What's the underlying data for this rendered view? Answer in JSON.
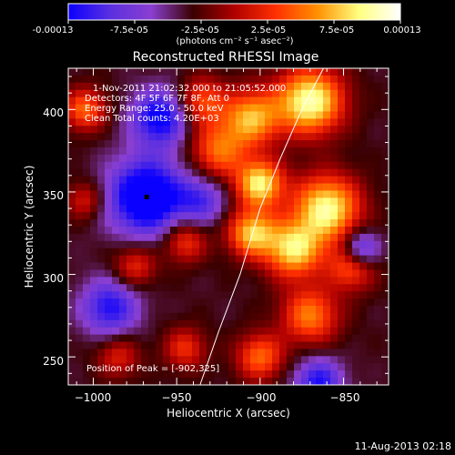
{
  "colorbar": {
    "tick_labels": [
      "-0.00013",
      "-7.5e-05",
      "-2.5e-05",
      "2.5e-05",
      "7.5e-05",
      "0.00013"
    ],
    "unit_label": "(photons cm⁻² s⁻¹ asec⁻²)",
    "range": [
      -0.00013,
      0.00013
    ],
    "colors": [
      "#0a00ff",
      "#5a2fe0",
      "#8a3fd0",
      "#3a0000",
      "#b00000",
      "#ff3000",
      "#ff9000",
      "#ffff80",
      "#ffffff"
    ]
  },
  "chart_data": {
    "type": "heatmap",
    "title": "Reconstructed RHESSI Image",
    "xlabel": "Heliocentric X (arcsec)",
    "ylabel": "Heliocentric Y (arcsec)",
    "xlim": [
      -1015,
      -823
    ],
    "ylim": [
      233,
      425
    ],
    "x_ticks": [
      -1000,
      -950,
      -900,
      -850
    ],
    "x_tick_labels": [
      "−1000",
      "−950",
      "−900",
      "−850"
    ],
    "y_ticks": [
      250,
      300,
      350,
      400
    ],
    "y_tick_labels": [
      "250",
      "300",
      "350",
      "400"
    ],
    "info_lines": [
      "1-Nov-2011 21:02:32.000 to 21:05:52.000",
      "Detectors: 4F 5F 6F 7F 8F, Att 0",
      "Energy Range: 25.0 - 50.0 keV",
      "Clean    Total counts: 4.20E+03"
    ],
    "peak_label": "Position of Peak = [-902,325]",
    "peak": [
      -902,
      325
    ],
    "limb_x": [
      -936,
      -925,
      -912,
      -900,
      -888,
      -875,
      -862
    ],
    "limb_y": [
      233,
      265,
      300,
      340,
      370,
      400,
      425
    ],
    "marker": [
      -968,
      347
    ],
    "blobs": [
      {
        "x": -870,
        "y": 405,
        "sigma": 14,
        "amp": 0.95
      },
      {
        "x": -905,
        "y": 395,
        "sigma": 12,
        "amp": 0.7
      },
      {
        "x": -935,
        "y": 405,
        "sigma": 10,
        "amp": 0.5
      },
      {
        "x": -925,
        "y": 375,
        "sigma": 12,
        "amp": 0.55
      },
      {
        "x": -900,
        "y": 355,
        "sigma": 10,
        "amp": 0.85
      },
      {
        "x": -860,
        "y": 340,
        "sigma": 14,
        "amp": 0.9
      },
      {
        "x": -880,
        "y": 315,
        "sigma": 12,
        "amp": 0.8
      },
      {
        "x": -845,
        "y": 305,
        "sigma": 10,
        "amp": 0.55
      },
      {
        "x": -905,
        "y": 325,
        "sigma": 10,
        "amp": 0.75
      },
      {
        "x": -870,
        "y": 275,
        "sigma": 12,
        "amp": 0.6
      },
      {
        "x": -900,
        "y": 250,
        "sigma": 10,
        "amp": 0.55
      },
      {
        "x": -945,
        "y": 320,
        "sigma": 9,
        "amp": 0.45
      },
      {
        "x": -1005,
        "y": 400,
        "sigma": 9,
        "amp": 0.55
      },
      {
        "x": -975,
        "y": 305,
        "sigma": 9,
        "amp": 0.4
      },
      {
        "x": -945,
        "y": 255,
        "sigma": 9,
        "amp": 0.4
      },
      {
        "x": -985,
        "y": 250,
        "sigma": 9,
        "amp": 0.35
      },
      {
        "x": -1005,
        "y": 345,
        "sigma": 8,
        "amp": 0.35
      },
      {
        "x": -968,
        "y": 347,
        "sigma": 16,
        "amp": -0.85
      },
      {
        "x": -960,
        "y": 395,
        "sigma": 12,
        "amp": -0.65
      },
      {
        "x": -990,
        "y": 280,
        "sigma": 12,
        "amp": -0.55
      },
      {
        "x": -865,
        "y": 235,
        "sigma": 10,
        "amp": -0.55
      },
      {
        "x": -840,
        "y": 315,
        "sigma": 8,
        "amp": -0.6
      },
      {
        "x": -935,
        "y": 345,
        "sigma": 10,
        "amp": -0.4
      }
    ]
  },
  "timestamp": "11-Aug-2013 02:18"
}
